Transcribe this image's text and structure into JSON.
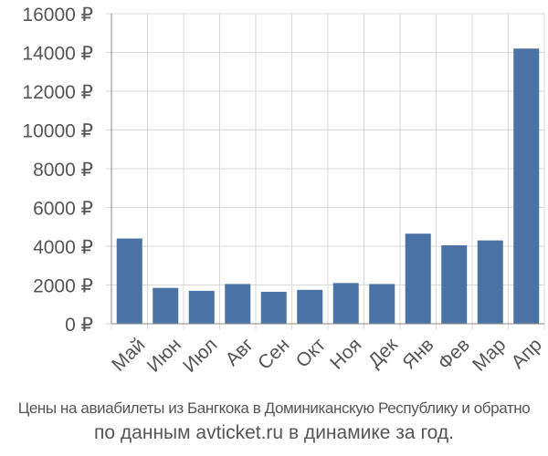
{
  "chart_data": {
    "type": "bar",
    "categories": [
      "Май",
      "Июн",
      "Июл",
      "Авг",
      "Сен",
      "Окт",
      "Ноя",
      "Дек",
      "Янв",
      "Фев",
      "Мар",
      "Апр"
    ],
    "values": [
      4400,
      1850,
      1700,
      2050,
      1650,
      1750,
      2100,
      2050,
      4650,
      4050,
      4300,
      14200
    ],
    "ylim": [
      0,
      16000
    ],
    "yticks": [
      0,
      2000,
      4000,
      6000,
      8000,
      10000,
      12000,
      14000,
      16000
    ],
    "ytick_labels": [
      "0 ₽",
      "2000 ₽",
      "4000 ₽",
      "6000 ₽",
      "8000 ₽",
      "10000 ₽",
      "12000 ₽",
      "14000 ₽",
      "16000 ₽"
    ],
    "grid": true,
    "bar_color": "#4a72a4",
    "grid_color": "#d9d9d9",
    "axis_color": "#888888"
  },
  "caption": {
    "line1": "Цены на авиабилеты из Бангкока в Доминиканскую Республику и обратно",
    "line2": "по данным avticket.ru в динамике за год."
  }
}
